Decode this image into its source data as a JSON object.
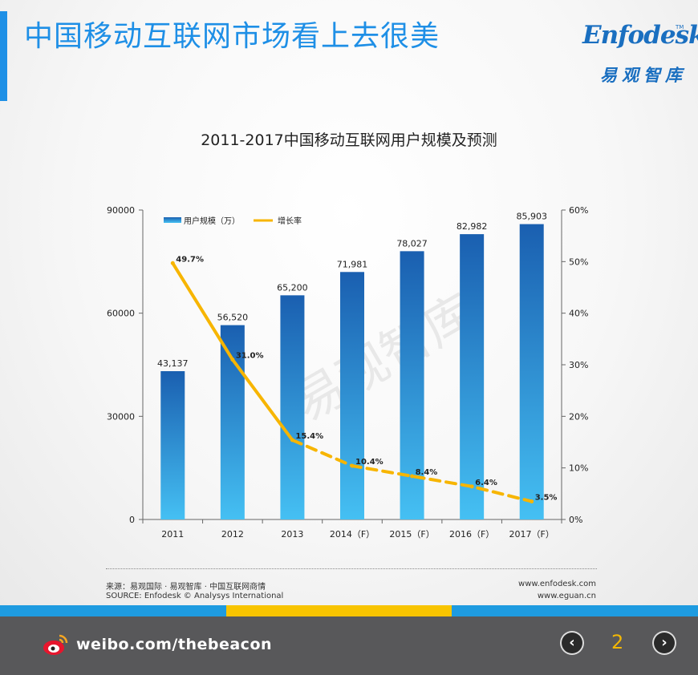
{
  "headline": "中国移动互联网市场看上去很美",
  "logo": {
    "en": "Enfodesk",
    "tm": "TM",
    "cn": "易观智库"
  },
  "watermark": "易观智库",
  "chart_data": {
    "type": "bar+line",
    "title": "2011-2017中国移动互联网用户规模及预测",
    "categories": [
      "2011",
      "2012",
      "2013",
      "2014（F）",
      "2015（F）",
      "2016（F）",
      "2017（F）"
    ],
    "series": [
      {
        "name": "用户规模（万）",
        "type": "bar",
        "axis": "left",
        "values": [
          43137,
          56520,
          65200,
          71981,
          78027,
          82982,
          85903
        ],
        "labels": [
          "43,137",
          "56,520",
          "65,200",
          "71,981",
          "78,027",
          "82,982",
          "85,903"
        ]
      },
      {
        "name": "增长率",
        "type": "line",
        "axis": "right",
        "values": [
          49.7,
          31.0,
          15.4,
          10.4,
          8.4,
          6.4,
          3.5
        ],
        "labels": [
          "49.7%",
          "31.0%",
          "15.4%",
          "10.4%",
          "8.4%",
          "6.4%",
          "3.5%"
        ],
        "forecast_from_index": 2
      }
    ],
    "left_axis": {
      "ylim": [
        0,
        90000
      ],
      "ticks": [
        "0",
        "30000",
        "60000",
        "90000"
      ],
      "tick_values": [
        0,
        30000,
        60000,
        90000
      ]
    },
    "right_axis": {
      "ylim": [
        0,
        60
      ],
      "ticks": [
        "0%",
        "10%",
        "20%",
        "30%",
        "40%",
        "50%",
        "60%"
      ],
      "tick_values": [
        0,
        10,
        20,
        30,
        40,
        50,
        60
      ]
    },
    "legend_position": "top-left",
    "grid": false,
    "colors": {
      "bar_top": "#1a5fb0",
      "bar_bottom": "#45c0f3",
      "line": "#f7b500"
    }
  },
  "source": {
    "line1": "来源：易观国际 · 易观智库 · 中国互联网商情",
    "line2": "SOURCE: Enfodesk © Analysys International"
  },
  "sites": {
    "line1": "www.enfodesk.com",
    "line2": "www.eguan.cn"
  },
  "footer": {
    "weibo": "weibo.com/thebeacon",
    "page": "2",
    "prev_glyph": "‹",
    "next_glyph": "›"
  },
  "stripe_colors": [
    "#1e9be0",
    "#f8c400",
    "#1e9be0"
  ]
}
